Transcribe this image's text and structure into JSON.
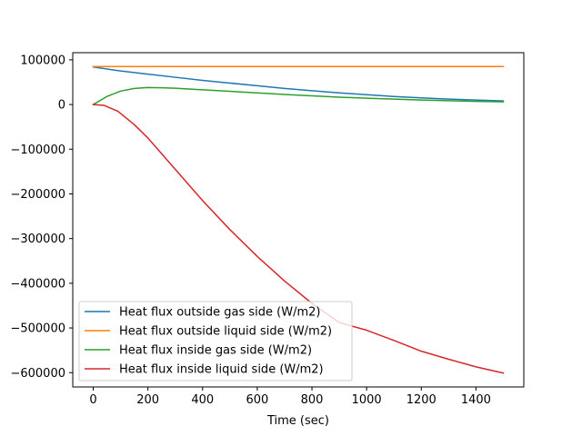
{
  "chart_data": {
    "type": "line",
    "title": "",
    "xlabel": "Time (sec)",
    "ylabel": "",
    "xlim": [
      -75,
      1575
    ],
    "ylim": [
      -632000,
      116000
    ],
    "xticks": [
      0,
      200,
      400,
      600,
      800,
      1000,
      1200,
      1400
    ],
    "yticks": [
      100000,
      0,
      -100000,
      -200000,
      -300000,
      -400000,
      -500000,
      -600000
    ],
    "grid": false,
    "legend_position": "lower-left",
    "series": [
      {
        "name": "Heat flux outside gas side (W/m2)",
        "color": "#1f77b4",
        "x": [
          0,
          100,
          200,
          300,
          400,
          500,
          600,
          700,
          800,
          900,
          1000,
          1100,
          1200,
          1300,
          1400,
          1500
        ],
        "y": [
          84000,
          75000,
          68000,
          61000,
          54000,
          48000,
          42000,
          36000,
          31000,
          26000,
          22000,
          18000,
          15000,
          12000,
          10000,
          8000
        ]
      },
      {
        "name": "Heat flux outside liquid side (W/m2)",
        "color": "#ff7f0e",
        "x": [
          0,
          1500
        ],
        "y": [
          85000,
          85000
        ]
      },
      {
        "name": "Heat flux inside gas side (W/m2)",
        "color": "#2ca02c",
        "x": [
          0,
          50,
          100,
          150,
          200,
          250,
          300,
          400,
          500,
          600,
          700,
          800,
          900,
          1000,
          1100,
          1200,
          1300,
          1400,
          1500
        ],
        "y": [
          0,
          18000,
          30000,
          36000,
          38000,
          37500,
          36500,
          33000,
          29500,
          26000,
          22500,
          19500,
          16500,
          14000,
          12000,
          10000,
          8500,
          7000,
          6000
        ]
      },
      {
        "name": "Heat flux inside liquid side (W/m2)",
        "color": "#d62728",
        "x": [
          0,
          40,
          90,
          150,
          200,
          300,
          400,
          500,
          600,
          700,
          800,
          900,
          1000,
          1100,
          1200,
          1300,
          1400,
          1500
        ],
        "y": [
          0,
          -2000,
          -15000,
          -45000,
          -75000,
          -145000,
          -215000,
          -280000,
          -340000,
          -395000,
          -445000,
          -488000,
          -505000,
          -528000,
          -552000,
          -570000,
          -587000,
          -601000
        ]
      }
    ]
  }
}
